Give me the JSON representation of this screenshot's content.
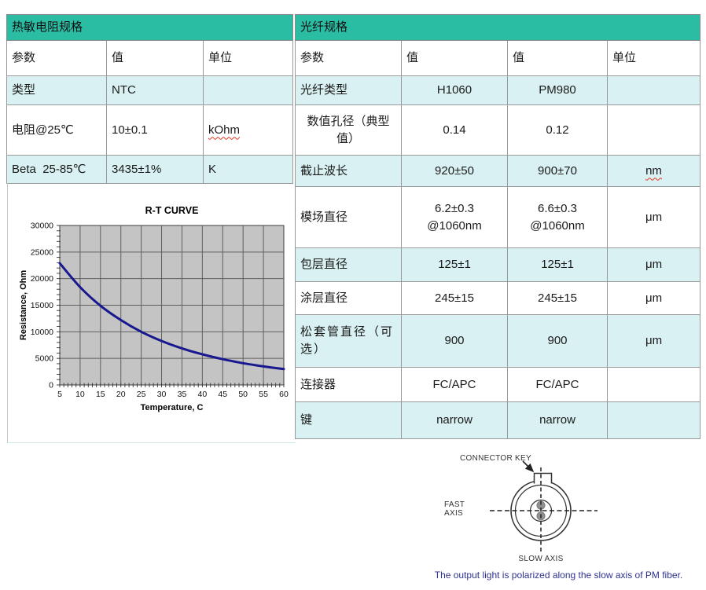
{
  "colors": {
    "teal_header": "#2BBCA4",
    "band_row": "#D9F1F2",
    "table_border": "#999999",
    "caption_blue": "#2e3192",
    "squiggle_red": "#e0321e"
  },
  "thermistor_table": {
    "title": "热敏电阻规格",
    "headers": [
      "参数",
      "值",
      "单位"
    ],
    "rows": [
      {
        "param": "类型",
        "value": "NTC",
        "unit": ""
      },
      {
        "param": "电阻@25℃",
        "value": "10±0.1",
        "unit": "kOhm"
      },
      {
        "param": "Beta  25-85℃",
        "value": "3435±1%",
        "unit": "K"
      }
    ]
  },
  "fiber_table": {
    "title": "光纤规格",
    "headers": [
      "参数",
      "值",
      "值",
      "单位"
    ],
    "rows": [
      {
        "param": "光纤类型",
        "value1": "H1060",
        "value2": "PM980",
        "unit": ""
      },
      {
        "param": "数值孔径（典型\n值）",
        "value1": "0.14",
        "value2": "0.12",
        "unit": ""
      },
      {
        "param": "截止波长",
        "value1": "920±50",
        "value2": "900±70",
        "unit": "nm"
      },
      {
        "param": "模场直径",
        "value1": "6.2±0.3\n@1060nm",
        "value2": "6.6±0.3\n@1060nm",
        "unit": "μm"
      },
      {
        "param": "包层直径",
        "value1": "125±1",
        "value2": "125±1",
        "unit": "μm"
      },
      {
        "param": "涂层直径",
        "value1": "245±15",
        "value2": "245±15",
        "unit": "μm"
      },
      {
        "param": "松套管直径（可\n选）",
        "value1": "900",
        "value2": "900",
        "unit": "μm"
      },
      {
        "param": "连接器",
        "value1": "FC/APC",
        "value2": "FC/APC",
        "unit": ""
      },
      {
        "param": "键",
        "value1": "narrow",
        "value2": "narrow",
        "unit": ""
      }
    ]
  },
  "chart_data": {
    "type": "line",
    "title": "R-T CURVE",
    "xlabel": "Temperature,  C",
    "ylabel": "Resistance,  Ohm",
    "x": [
      5,
      10,
      15,
      20,
      25,
      30,
      35,
      40,
      45,
      50,
      55,
      60
    ],
    "y": [
      22900,
      18400,
      14900,
      12200,
      10000,
      8270,
      6880,
      5760,
      4850,
      4100,
      3490,
      2980
    ],
    "xlim": [
      5,
      60
    ],
    "ylim": [
      0,
      30000
    ],
    "xtick_step": 5,
    "ytick_step": 5000,
    "x_minor_step": 1,
    "y_minor_step": 1000,
    "grid": true,
    "legend": "none",
    "line_color": "#18188f",
    "plot_bg": "#c4c4c4",
    "grid_color": "#5f5f5f"
  },
  "diagram": {
    "connector_key_label": "CONNECTOR KEY",
    "fast_axis_label": "FAST\nAXIS",
    "slow_axis_label": "SLOW AXIS",
    "caption": "The output light is polarized along the slow axis of PM fiber."
  }
}
